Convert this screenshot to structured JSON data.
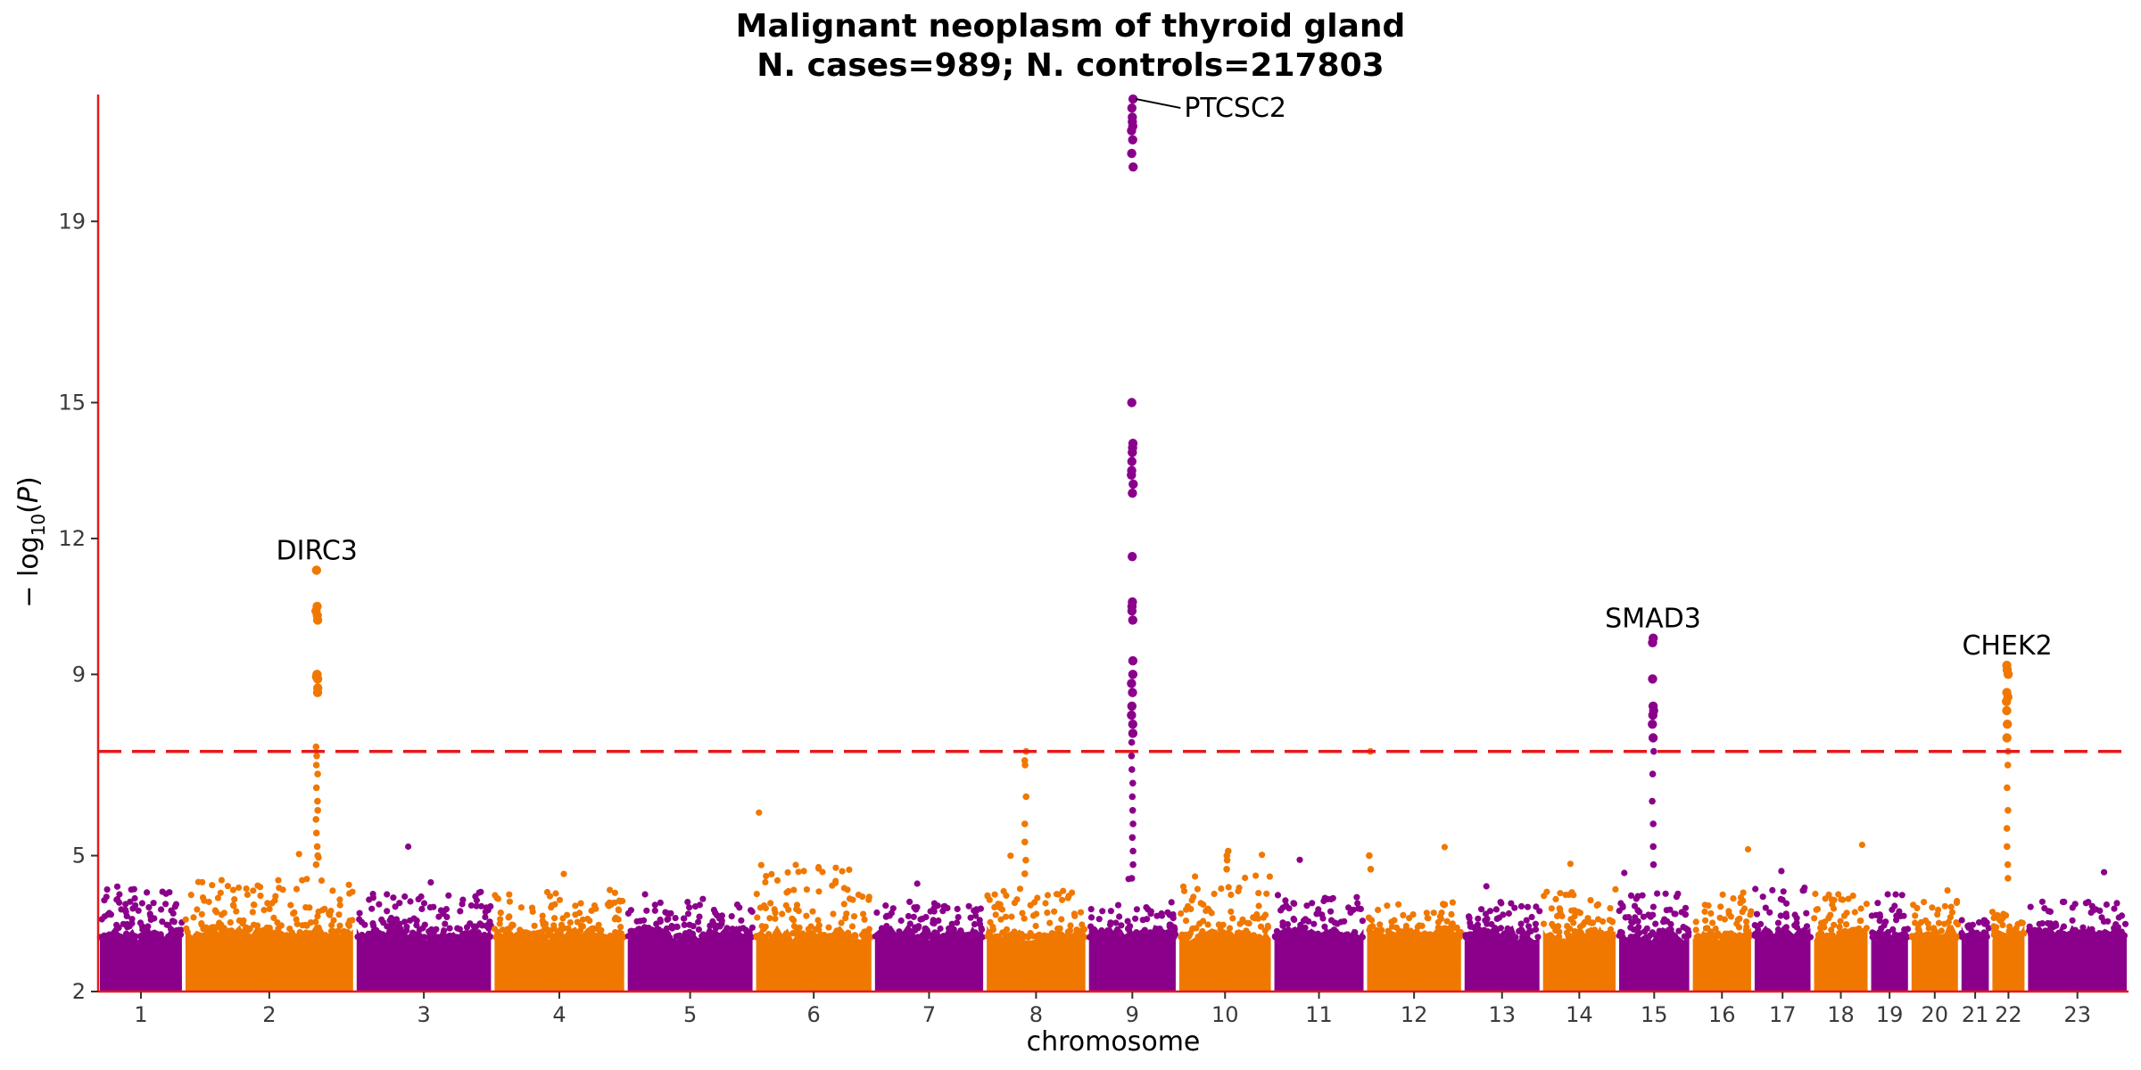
{
  "chart_data": {
    "type": "scatter",
    "subtype": "manhattan",
    "title": "Malignant neoplasm of thyroid gland",
    "subtitle": "N. cases=989; N. controls=217803",
    "xlabel": "chromosome",
    "ylabel": "−log10(P)",
    "ylim": [
      2,
      21.8
    ],
    "yticks": [
      2,
      5,
      9,
      12,
      15,
      19
    ],
    "significance_threshold": 7.3,
    "threshold_color": "#e41a1c",
    "axis_color": "#e41a1c",
    "grid": false,
    "colors": {
      "odd": "#8b008b",
      "even": "#f07800"
    },
    "chromosomes": [
      {
        "chr": "1",
        "label": "1",
        "color": "#8b008b",
        "x_range": [
          0,
          180
        ],
        "max_bg": 4.3
      },
      {
        "chr": "2",
        "label": "2",
        "color": "#f07800",
        "x_range": [
          180,
          540
        ],
        "max_bg": 4.5
      },
      {
        "chr": "3",
        "label": "3",
        "color": "#8b008b",
        "x_range": [
          540,
          830
        ],
        "max_bg": 4.2
      },
      {
        "chr": "4",
        "label": "4",
        "color": "#f07800",
        "x_range": [
          830,
          1110
        ],
        "max_bg": 4.2
      },
      {
        "chr": "5",
        "label": "5",
        "color": "#8b008b",
        "x_range": [
          1110,
          1380
        ],
        "max_bg": 4.0
      },
      {
        "chr": "6",
        "label": "6",
        "color": "#f07800",
        "x_range": [
          1380,
          1630
        ],
        "max_bg": 4.8
      },
      {
        "chr": "7",
        "label": "7",
        "color": "#8b008b",
        "x_range": [
          1630,
          1865
        ],
        "max_bg": 4.0
      },
      {
        "chr": "8",
        "label": "8",
        "color": "#f07800",
        "x_range": [
          1865,
          2080
        ],
        "max_bg": 4.3
      },
      {
        "chr": "9",
        "label": "9",
        "color": "#8b008b",
        "x_range": [
          2080,
          2270
        ],
        "max_bg": 4.0
      },
      {
        "chr": "10",
        "label": "10",
        "color": "#f07800",
        "x_range": [
          2270,
          2470
        ],
        "max_bg": 4.6
      },
      {
        "chr": "11",
        "label": "11",
        "color": "#8b008b",
        "x_range": [
          2470,
          2665
        ],
        "max_bg": 4.2
      },
      {
        "chr": "12",
        "label": "12",
        "color": "#f07800",
        "x_range": [
          2665,
          2870
        ],
        "max_bg": 4.0
      },
      {
        "chr": "13",
        "label": "13",
        "color": "#8b008b",
        "x_range": [
          2870,
          3035
        ],
        "max_bg": 4.0
      },
      {
        "chr": "14",
        "label": "14",
        "color": "#f07800",
        "x_range": [
          3035,
          3195
        ],
        "max_bg": 4.3
      },
      {
        "chr": "15",
        "label": "15",
        "color": "#8b008b",
        "x_range": [
          3195,
          3350
        ],
        "max_bg": 4.2
      },
      {
        "chr": "16",
        "label": "16",
        "color": "#f07800",
        "x_range": [
          3350,
          3480
        ],
        "max_bg": 4.2
      },
      {
        "chr": "17",
        "label": "17",
        "color": "#8b008b",
        "x_range": [
          3480,
          3605
        ],
        "max_bg": 4.3
      },
      {
        "chr": "18",
        "label": "18",
        "color": "#f07800",
        "x_range": [
          3605,
          3725
        ],
        "max_bg": 4.2
      },
      {
        "chr": "19",
        "label": "19",
        "color": "#8b008b",
        "x_range": [
          3725,
          3810
        ],
        "max_bg": 4.2
      },
      {
        "chr": "20",
        "label": "20",
        "color": "#f07800",
        "x_range": [
          3810,
          3915
        ],
        "max_bg": 4.0
      },
      {
        "chr": "21",
        "label": "21",
        "color": "#8b008b",
        "x_range": [
          3915,
          3980
        ],
        "max_bg": 3.6
      },
      {
        "chr": "22",
        "label": "22",
        "color": "#f07800",
        "x_range": [
          3980,
          4055
        ],
        "max_bg": 3.8
      },
      {
        "chr": "23",
        "label": "23",
        "color": "#8b008b",
        "x_range": [
          4055,
          4270
        ],
        "max_bg": 4.0
      }
    ],
    "peaks": [
      {
        "chr": "2",
        "pos": 460,
        "gene": "DIRC3",
        "values": [
          11.3,
          10.5,
          10.4,
          10.3,
          10.2,
          9.0,
          8.95,
          8.9,
          8.7,
          8.6,
          7.4,
          7.2,
          7.0,
          6.8,
          6.5,
          6.2,
          6.0,
          5.8,
          5.5,
          5.2,
          5.0,
          4.8
        ]
      },
      {
        "chr": "9",
        "pos": 2175,
        "gene": "PTCSC2",
        "values": [
          21.7,
          21.5,
          21.3,
          21.2,
          21.1,
          21.0,
          20.8,
          20.5,
          20.2,
          15.0,
          14.1,
          14.0,
          13.9,
          13.7,
          13.5,
          13.4,
          13.2,
          13.0,
          11.6,
          10.6,
          10.5,
          10.4,
          10.2,
          9.3,
          9.0,
          8.8,
          8.6,
          8.3,
          8.1,
          7.9,
          7.7,
          7.5,
          7.2,
          6.9,
          6.6,
          6.3,
          6.0,
          5.7,
          5.4,
          5.1,
          4.8,
          4.5
        ],
        "label_offset": true
      },
      {
        "chr": "15",
        "pos": 3270,
        "gene": "SMAD3",
        "values": [
          9.8,
          9.7,
          8.9,
          8.3,
          8.2,
          8.1,
          7.9,
          7.6,
          7.3,
          6.8,
          6.2,
          5.7,
          5.2,
          4.8
        ]
      },
      {
        "chr": "22",
        "pos": 4015,
        "gene": "CHEK2",
        "values": [
          9.2,
          9.1,
          9.0,
          8.6,
          8.5,
          8.4,
          8.2,
          7.9,
          7.6,
          7.3,
          7.0,
          6.5,
          6.0,
          5.6,
          5.2,
          4.8,
          4.5
        ]
      },
      {
        "chr": "8",
        "pos": 1950,
        "gene": "",
        "values": [
          7.3,
          7.1,
          7.0,
          6.3,
          5.7,
          5.3,
          4.9,
          4.6
        ]
      },
      {
        "chr": "12",
        "pos": 2675,
        "gene": "",
        "values": [
          7.3,
          5.0,
          4.7
        ]
      },
      {
        "chr": "10",
        "pos": 2375,
        "gene": "",
        "values": [
          5.1,
          5.0,
          4.9,
          4.7
        ]
      }
    ],
    "annotations": [
      "DIRC3",
      "PTCSC2",
      "SMAD3",
      "CHEK2"
    ]
  }
}
